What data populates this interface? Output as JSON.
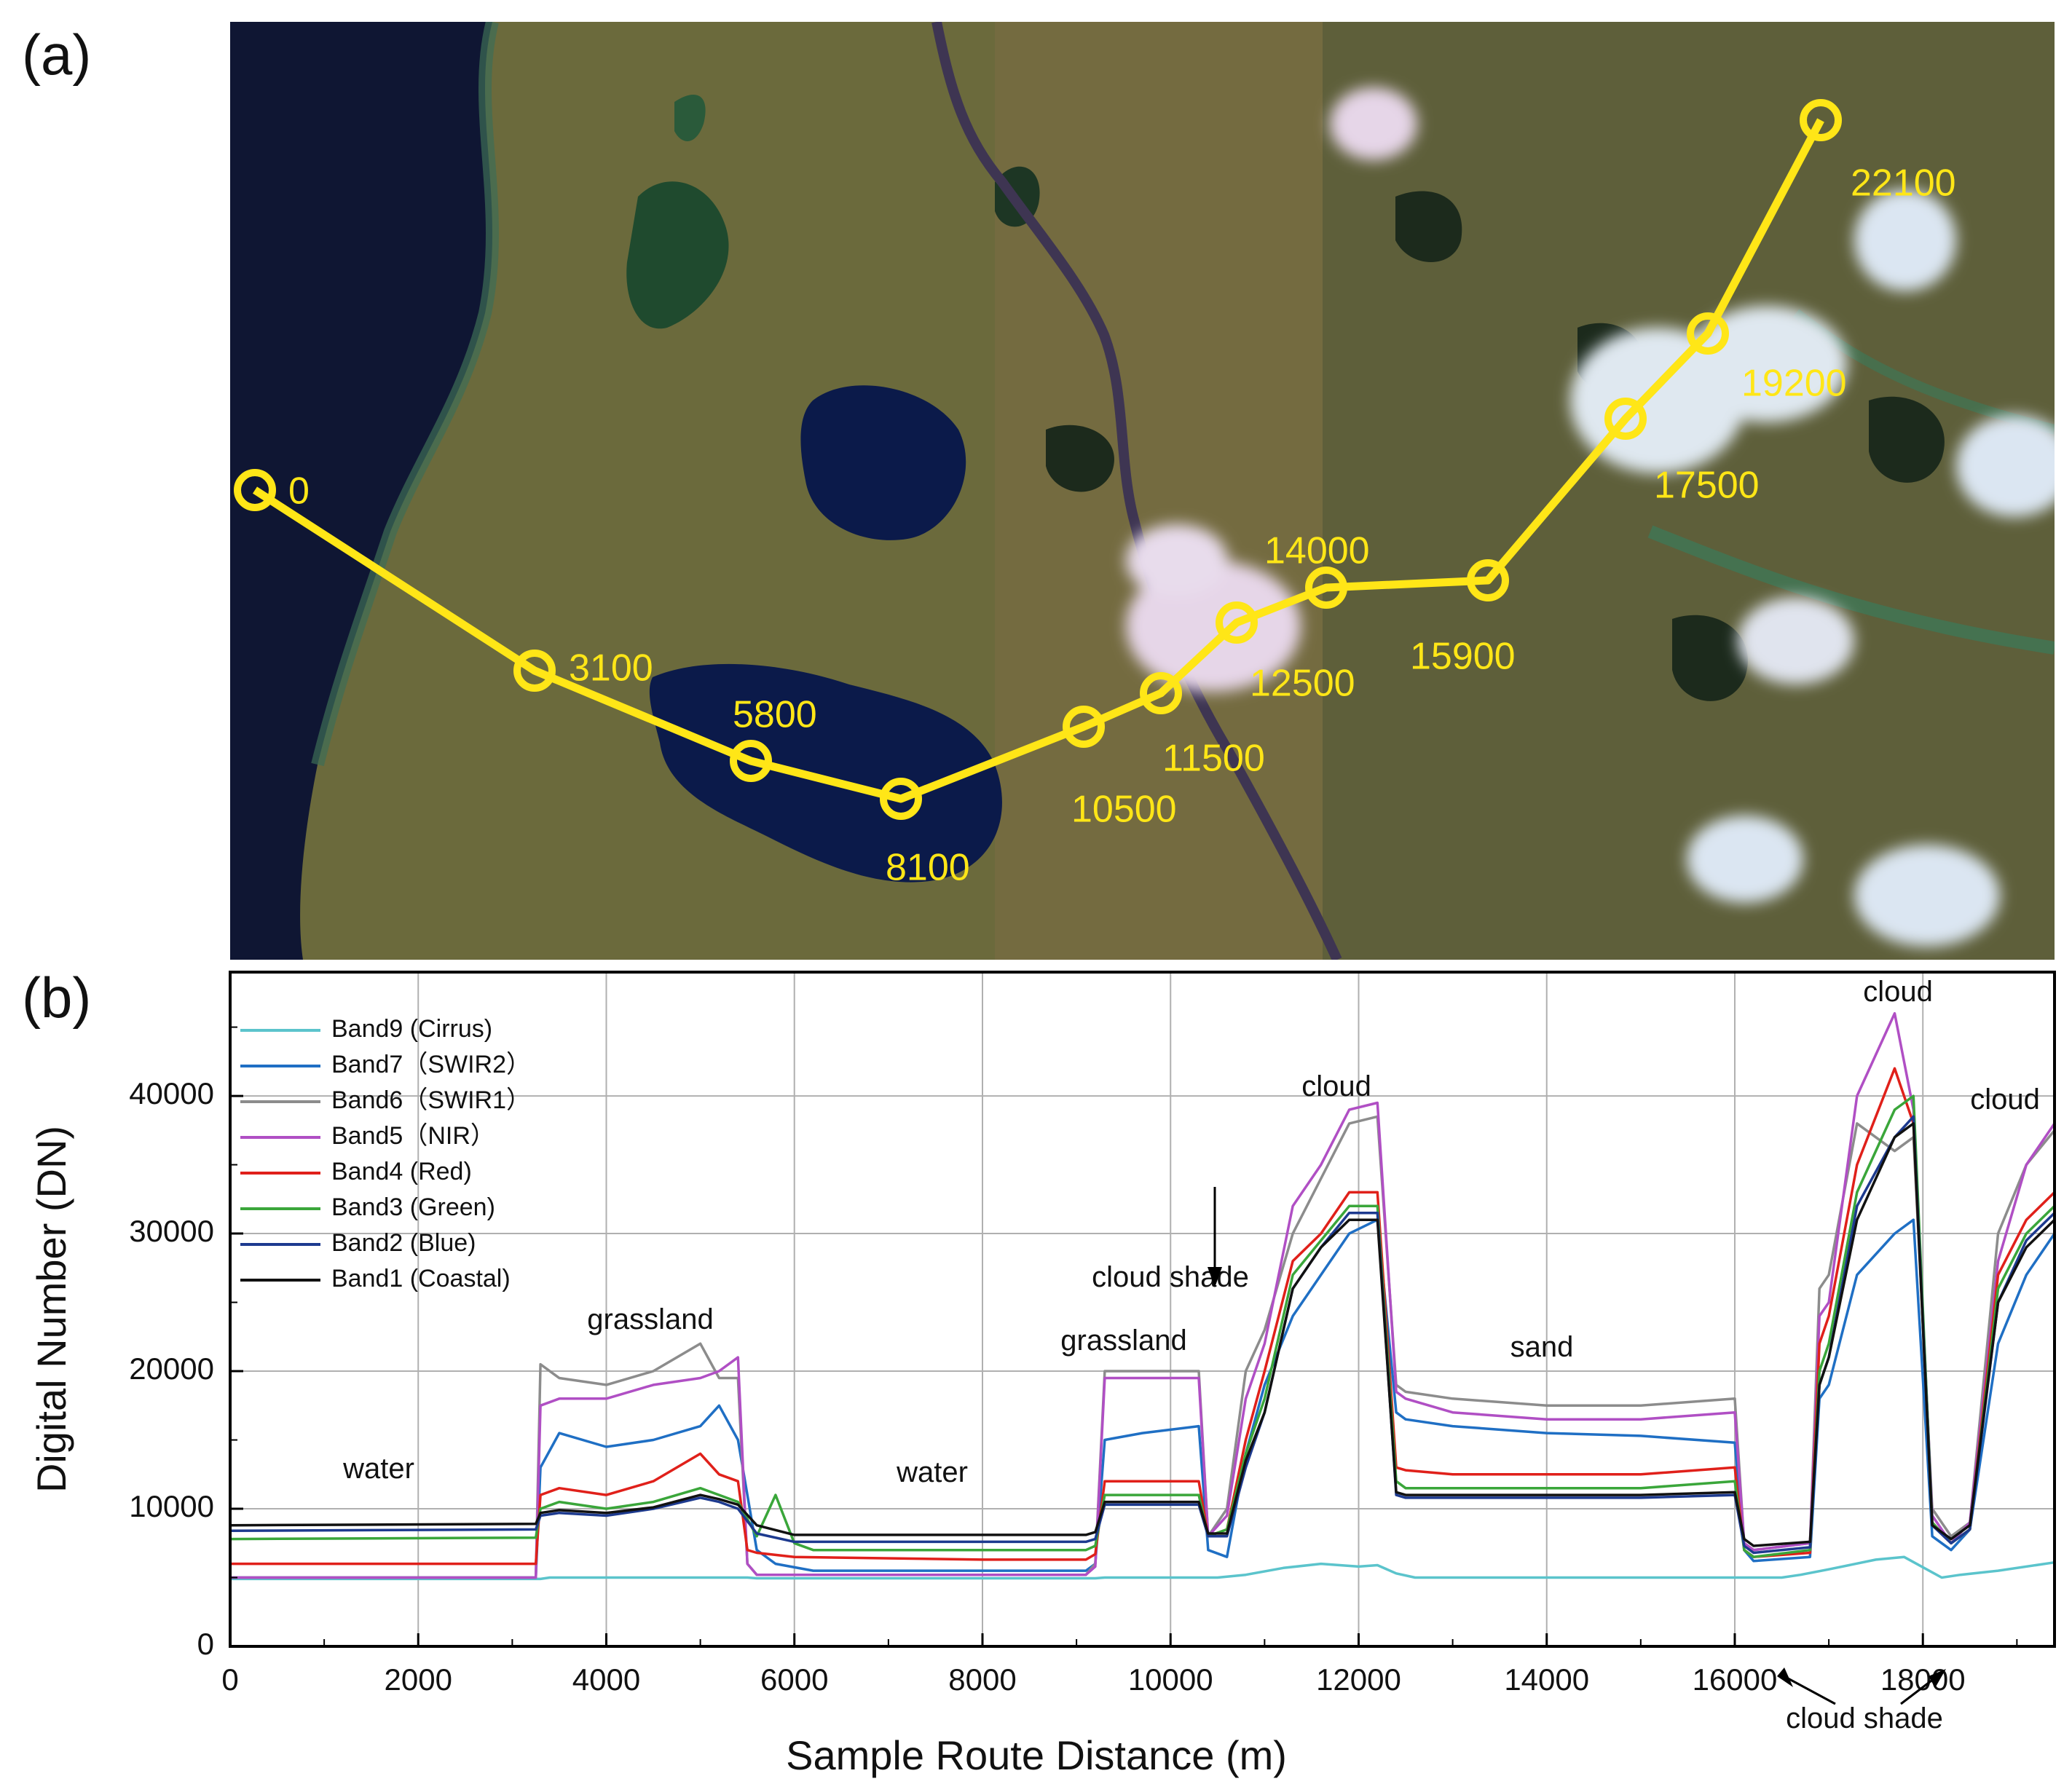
{
  "panel_labels": {
    "a": "(a)",
    "b": "(b)"
  },
  "map": {
    "route_labels": [
      "0",
      "3100",
      "5800",
      "8100",
      "10500",
      "11500",
      "12500",
      "14000",
      "15900",
      "17500",
      "19200",
      "22100"
    ],
    "route_color": "#ffe617"
  },
  "chart_data": {
    "type": "line",
    "xlabel": "Sample Route Distance (m)",
    "ylabel": "Digital Number (DN)",
    "xlim": [
      0,
      19400
    ],
    "ylim": [
      0,
      49000
    ],
    "xticks": [
      0,
      2000,
      4000,
      6000,
      8000,
      10000,
      12000,
      14000,
      16000,
      18000
    ],
    "yticks": [
      0,
      10000,
      20000,
      30000,
      40000
    ],
    "grid": true,
    "legend_position": "top-left",
    "series": [
      {
        "name": "Band9 (Cirrus)",
        "color": "#5bc4cc",
        "x": [
          0,
          3300,
          3400,
          5500,
          5600,
          9200,
          9300,
          10300,
          10500,
          10800,
          11200,
          11600,
          12000,
          12200,
          12400,
          12600,
          16500,
          16700,
          17000,
          17500,
          17800,
          18200,
          18400,
          18800,
          19400
        ],
        "y": [
          4900,
          4900,
          5000,
          5000,
          4950,
          4950,
          5000,
          5000,
          5000,
          5200,
          5700,
          6000,
          5800,
          5900,
          5300,
          5000,
          5000,
          5200,
          5600,
          6300,
          6500,
          5000,
          5200,
          5500,
          6100
        ]
      },
      {
        "name": "Band7（SWIR2）",
        "color": "#1f6fc4",
        "x": [
          0,
          3250,
          3300,
          3500,
          4000,
          4500,
          5000,
          5200,
          5400,
          5600,
          5800,
          6200,
          8000,
          9100,
          9200,
          9300,
          9700,
          10300,
          10400,
          10600,
          10800,
          11000,
          11300,
          11600,
          11900,
          12200,
          12400,
          12500,
          13000,
          14000,
          15000,
          16000,
          16100,
          16200,
          16800,
          16900,
          17000,
          17300,
          17700,
          17900,
          18100,
          18300,
          18500,
          18800,
          19100,
          19400
        ],
        "y": [
          5000,
          5000,
          13000,
          15500,
          14500,
          15000,
          16000,
          17500,
          15000,
          7000,
          6000,
          5500,
          5500,
          5500,
          6000,
          15000,
          15500,
          16000,
          7000,
          6500,
          14000,
          19000,
          24000,
          27000,
          30000,
          31000,
          17000,
          16500,
          16000,
          15500,
          15300,
          14800,
          7000,
          6200,
          6500,
          18000,
          19000,
          27000,
          30000,
          31000,
          8000,
          7000,
          8500,
          22000,
          27000,
          30000
        ]
      },
      {
        "name": "Band6（SWIR1）",
        "color": "#8c8c8c",
        "x": [
          0,
          3250,
          3300,
          3500,
          4000,
          4500,
          5000,
          5200,
          5400,
          5500,
          5600,
          6000,
          8000,
          9100,
          9200,
          9300,
          9700,
          10300,
          10400,
          10600,
          10800,
          11000,
          11300,
          11600,
          11900,
          12200,
          12400,
          12500,
          13000,
          14000,
          15000,
          16000,
          16100,
          16200,
          16800,
          16900,
          17000,
          17300,
          17700,
          17900,
          18100,
          18300,
          18500,
          18800,
          19100,
          19400
        ],
        "y": [
          5000,
          5000,
          20500,
          19500,
          19000,
          20000,
          22000,
          19500,
          19500,
          6000,
          5200,
          5200,
          5200,
          5200,
          6000,
          20000,
          20000,
          20000,
          8000,
          10000,
          20000,
          23000,
          30000,
          34000,
          38000,
          38500,
          19000,
          18500,
          18000,
          17500,
          17500,
          18000,
          7500,
          7000,
          7500,
          26000,
          27000,
          38000,
          36000,
          37000,
          10000,
          8000,
          9000,
          30000,
          35000,
          37500
        ]
      },
      {
        "name": "Band5（NIR）",
        "color": "#b04fc4",
        "x": [
          0,
          3250,
          3300,
          3500,
          4000,
          4500,
          5000,
          5200,
          5400,
          5500,
          5600,
          6000,
          8000,
          9100,
          9200,
          9300,
          9700,
          10300,
          10400,
          10600,
          10800,
          11000,
          11300,
          11600,
          11900,
          12200,
          12400,
          12500,
          13000,
          14000,
          15000,
          16000,
          16100,
          16200,
          16800,
          16900,
          17000,
          17300,
          17700,
          17900,
          18100,
          18300,
          18500,
          18800,
          19100,
          19400
        ],
        "y": [
          5000,
          5000,
          17500,
          18000,
          18000,
          19000,
          19500,
          20000,
          21000,
          6000,
          5200,
          5200,
          5200,
          5200,
          5800,
          19500,
          19500,
          19500,
          8000,
          9500,
          18000,
          22000,
          32000,
          35000,
          39000,
          39500,
          18500,
          18000,
          17000,
          16500,
          16500,
          17000,
          7500,
          7000,
          7500,
          24000,
          25000,
          40000,
          46000,
          39000,
          9500,
          7500,
          9000,
          28000,
          35000,
          38000
        ]
      },
      {
        "name": "Band4 (Red)",
        "color": "#e0201a",
        "x": [
          0,
          3250,
          3300,
          3500,
          4000,
          4500,
          5000,
          5200,
          5400,
          5500,
          5600,
          6000,
          8000,
          9100,
          9200,
          9300,
          9700,
          10300,
          10400,
          10600,
          10800,
          11000,
          11300,
          11600,
          11900,
          12200,
          12400,
          12500,
          13000,
          14000,
          15000,
          16000,
          16100,
          16200,
          16800,
          16900,
          17000,
          17300,
          17700,
          17900,
          18100,
          18300,
          18500,
          18800,
          19100,
          19400
        ],
        "y": [
          6000,
          6000,
          11000,
          11500,
          11000,
          12000,
          14000,
          12500,
          12000,
          7000,
          6800,
          6500,
          6300,
          6300,
          6700,
          12000,
          12000,
          12000,
          8000,
          8500,
          15000,
          20000,
          28000,
          30000,
          33000,
          33000,
          13000,
          12800,
          12500,
          12500,
          12500,
          13000,
          7000,
          6500,
          6800,
          22000,
          24000,
          35000,
          42000,
          38000,
          9000,
          7500,
          8500,
          27000,
          31000,
          33000
        ]
      },
      {
        "name": "Band3 (Green)",
        "color": "#3aa63a",
        "x": [
          0,
          3250,
          3300,
          3500,
          4000,
          4500,
          5000,
          5200,
          5400,
          5600,
          5800,
          6000,
          6200,
          8000,
          9100,
          9200,
          9300,
          9700,
          10300,
          10400,
          10600,
          10800,
          11000,
          11300,
          11600,
          11900,
          12200,
          12400,
          12500,
          13000,
          14000,
          15000,
          16000,
          16100,
          16200,
          16800,
          16900,
          17000,
          17300,
          17700,
          17900,
          18100,
          18300,
          18500,
          18800,
          19100,
          19400
        ],
        "y": [
          7800,
          7900,
          10000,
          10500,
          10000,
          10500,
          11500,
          11000,
          10500,
          8000,
          11000,
          7500,
          7000,
          7000,
          7000,
          7300,
          11000,
          11000,
          11000,
          8000,
          8500,
          14000,
          18000,
          27000,
          29500,
          32000,
          32000,
          12000,
          11500,
          11500,
          11500,
          11500,
          12000,
          7000,
          6500,
          7000,
          20000,
          22000,
          33000,
          39000,
          40000,
          9000,
          7500,
          8500,
          26000,
          30000,
          32000
        ]
      },
      {
        "name": "Band2 (Blue)",
        "color": "#1d3a8f",
        "x": [
          0,
          3250,
          3300,
          3500,
          4000,
          4500,
          5000,
          5200,
          5400,
          5600,
          6000,
          8000,
          9100,
          9200,
          9300,
          9700,
          10300,
          10400,
          10600,
          10800,
          11000,
          11300,
          11600,
          11900,
          12200,
          12400,
          12500,
          13000,
          14000,
          15000,
          16000,
          16100,
          16200,
          16800,
          16900,
          17000,
          17300,
          17700,
          17900,
          18100,
          18300,
          18500,
          18800,
          19100,
          19400
        ],
        "y": [
          8400,
          8500,
          9500,
          9700,
          9500,
          10000,
          10800,
          10500,
          10000,
          8200,
          7600,
          7600,
          7600,
          7800,
          10300,
          10300,
          10300,
          8000,
          8000,
          13000,
          17000,
          26000,
          29000,
          31500,
          31500,
          11000,
          10800,
          10800,
          10800,
          10800,
          11000,
          7300,
          6800,
          7200,
          19000,
          21000,
          32000,
          37000,
          38500,
          8800,
          7500,
          8500,
          25000,
          29500,
          31500
        ]
      },
      {
        "name": "Band1 (Coastal)",
        "color": "#111111",
        "x": [
          0,
          3250,
          3300,
          3500,
          4000,
          4500,
          5000,
          5200,
          5400,
          5600,
          6000,
          8000,
          9100,
          9200,
          9300,
          9700,
          10300,
          10400,
          10600,
          10800,
          11000,
          11300,
          11600,
          11900,
          12200,
          12400,
          12500,
          13000,
          14000,
          15000,
          16000,
          16100,
          16200,
          16800,
          16900,
          17000,
          17300,
          17700,
          17900,
          18100,
          18300,
          18500,
          18800,
          19100,
          19400
        ],
        "y": [
          8800,
          8900,
          9700,
          9900,
          9700,
          10100,
          11000,
          10700,
          10300,
          8800,
          8100,
          8100,
          8100,
          8300,
          10500,
          10500,
          10500,
          8200,
          8200,
          13500,
          17000,
          26000,
          29000,
          31000,
          31000,
          11200,
          11000,
          11000,
          11000,
          11000,
          11200,
          7800,
          7300,
          7600,
          19000,
          21000,
          31000,
          37000,
          38000,
          8800,
          7800,
          8800,
          25000,
          29000,
          31000
        ]
      }
    ],
    "annotations": [
      "water",
      "grassland",
      "water",
      "grassland",
      "cloud shade",
      "cloud",
      "sand",
      "cloud",
      "cloud",
      "cloud shade"
    ]
  }
}
